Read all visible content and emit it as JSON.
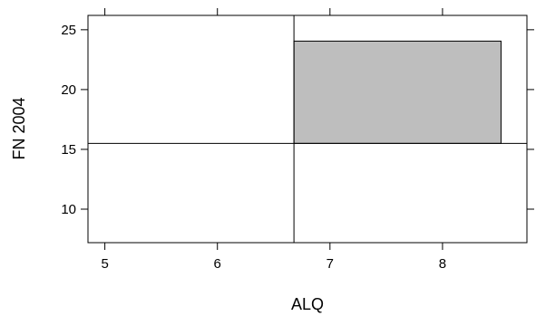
{
  "chart_data": {
    "type": "scatter",
    "title": "",
    "xlabel": "ALQ",
    "ylabel": "FN 2004",
    "xlim": [
      4.85,
      8.75
    ],
    "ylim": [
      7.2,
      26.2
    ],
    "x_ticks": [
      5,
      6,
      7,
      8
    ],
    "y_ticks": [
      10,
      15,
      20,
      25
    ],
    "grid": false,
    "reference_lines": {
      "vertical_x": 6.68,
      "horizontal_y": 15.5
    },
    "shaded_region": {
      "x": [
        6.68,
        8.52
      ],
      "y": [
        15.5,
        24.05
      ],
      "fill": "#bebebe"
    },
    "colors": {
      "axis": "#000000",
      "shade": "#bebebe",
      "background": "#ffffff"
    }
  }
}
